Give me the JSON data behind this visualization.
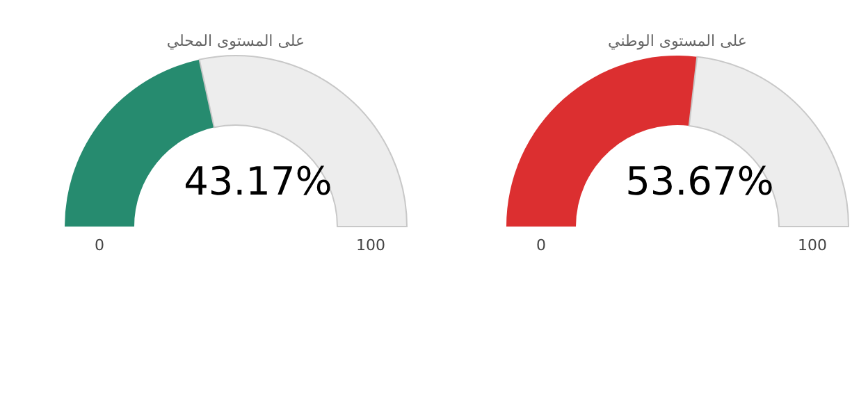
{
  "chart_data": [
    {
      "type": "donut",
      "title": "على المستوى المحلي",
      "categories": [
        null,
        null
      ],
      "values": [
        43.17,
        56.83
      ],
      "colors": [
        "#268b6f",
        "#ededed"
      ],
      "annotations": [
        "43.17%",
        "0",
        "100"
      ]
    },
    {
      "type": "donut",
      "title": "على المستوى الوطني",
      "categories": [
        null,
        null
      ],
      "values": [
        53.67,
        46.33
      ],
      "colors": [
        "#dc2f30",
        "#ededed"
      ],
      "annotations": [
        "53.67%",
        "0",
        "100"
      ]
    }
  ]
}
